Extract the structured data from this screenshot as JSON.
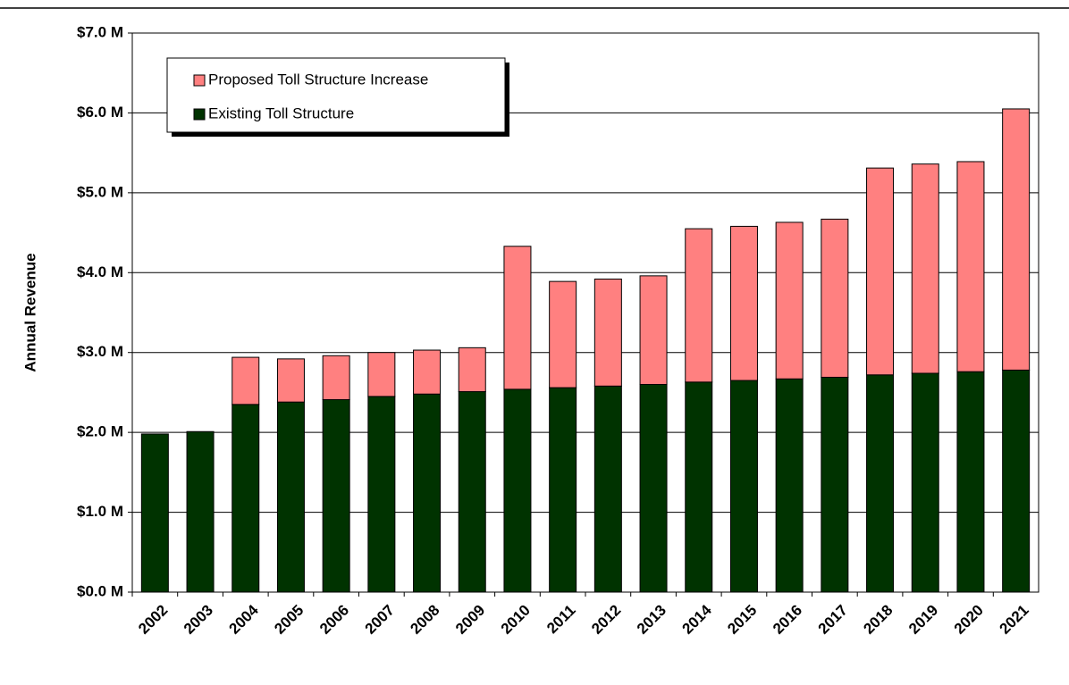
{
  "chart_data": {
    "type": "stacked_bar",
    "y_label": "Annual Revenue",
    "categories": [
      "2002",
      "2003",
      "2004",
      "2005",
      "2006",
      "2007",
      "2008",
      "2009",
      "2010",
      "2011",
      "2012",
      "2013",
      "2014",
      "2015",
      "2016",
      "2017",
      "2018",
      "2019",
      "2020",
      "2021"
    ],
    "series": [
      {
        "name": "Existing Toll Structure",
        "color": "#003300",
        "values": [
          1.98,
          2.01,
          2.35,
          2.38,
          2.41,
          2.45,
          2.48,
          2.51,
          2.54,
          2.56,
          2.58,
          2.6,
          2.63,
          2.65,
          2.67,
          2.69,
          2.72,
          2.74,
          2.76,
          2.78
        ]
      },
      {
        "name": "Proposed Toll Structure Increase",
        "color": "#ff8080",
        "values": [
          0,
          0,
          0.59,
          0.54,
          0.55,
          0.55,
          0.55,
          0.55,
          1.79,
          1.33,
          1.34,
          1.36,
          1.92,
          1.93,
          1.96,
          1.98,
          2.59,
          2.62,
          2.63,
          3.27
        ]
      }
    ],
    "ylim": [
      0,
      7
    ],
    "yticks": [
      {
        "value": 0,
        "label": "$0.0 M"
      },
      {
        "value": 1,
        "label": "$1.0 M"
      },
      {
        "value": 2,
        "label": "$2.0 M"
      },
      {
        "value": 3,
        "label": "$3.0 M"
      },
      {
        "value": 4,
        "label": "$4.0 M"
      },
      {
        "value": 5,
        "label": "$5.0 M"
      },
      {
        "value": 6,
        "label": "$6.0 M"
      },
      {
        "value": 7,
        "label": "$7.0 M"
      }
    ],
    "grid": true
  }
}
